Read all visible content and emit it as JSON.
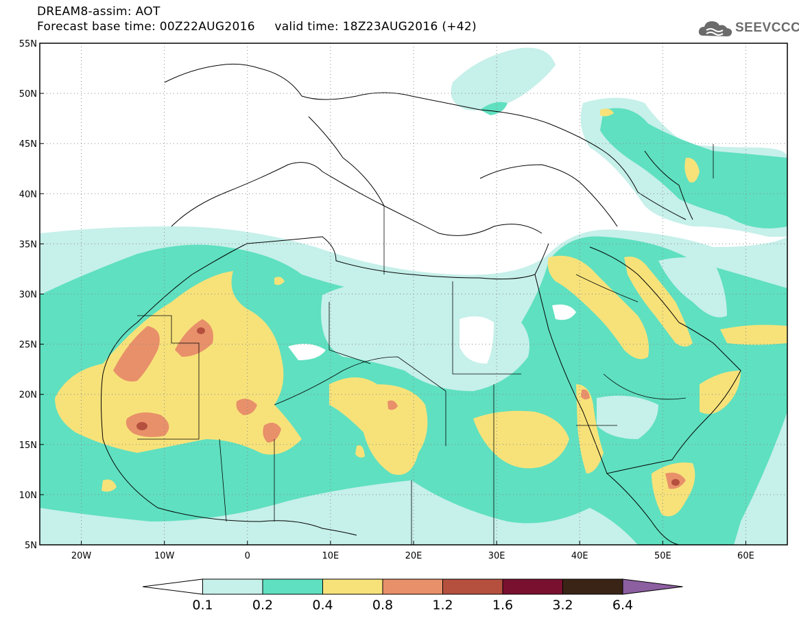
{
  "title": {
    "line1": "DREAM8-assim: AOT",
    "line2": "Forecast base time: 00Z22AUG2016     valid time: 18Z23AUG2016 (+42)"
  },
  "logo": {
    "text": "SEEVCCC",
    "icon": "cloud-icon"
  },
  "map": {
    "lon_range": [
      -25,
      65
    ],
    "lat_range": [
      5,
      55
    ],
    "x_ticks": [
      "20W",
      "10W",
      "0",
      "10E",
      "20E",
      "30E",
      "40E",
      "50E",
      "60E"
    ],
    "y_ticks": [
      "5N",
      "10N",
      "15N",
      "20N",
      "25N",
      "30N",
      "35N",
      "40N",
      "45N",
      "50N",
      "55N"
    ],
    "grid": "dotted"
  },
  "colorbar": {
    "labels": [
      "0.1",
      "0.2",
      "0.4",
      "0.8",
      "1.2",
      "1.6",
      "3.2",
      "6.4"
    ],
    "colors": [
      "#ffffff",
      "#c6f0ea",
      "#5fe0c0",
      "#f7e27a",
      "#e8906a",
      "#b5503f",
      "#7a1030",
      "#3a2416",
      "#8c5fa0"
    ]
  }
}
